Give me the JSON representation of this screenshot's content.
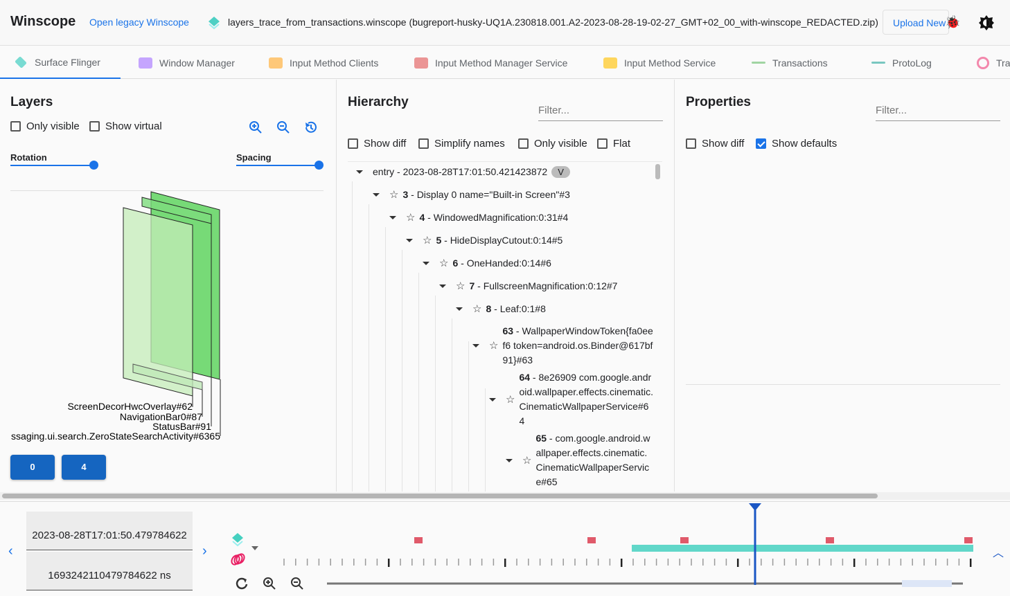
{
  "header": {
    "title": "Winscope",
    "legacy_link": "Open legacy Winscope",
    "trace_file": "layers_trace_from_transactions.winscope (bugreport-husky-UQ1A.230818.001.A2-2023-08-28-19-02-27_GMT+02_00_with-winscope_REDACTED.zip)",
    "upload_label": "Upload New",
    "bug_icon": "bug-icon",
    "theme_icon": "brightness-icon"
  },
  "tabs": [
    {
      "label": "Surface Flinger",
      "icon": "layers-icon",
      "color": "#4dd0c4",
      "active": true
    },
    {
      "label": "Window Manager",
      "icon": "window-icon",
      "color": "#b388ff"
    },
    {
      "label": "Input Method Clients",
      "icon": "keyboard-icon",
      "color": "#ffb74d"
    },
    {
      "label": "Input Method Manager Service",
      "icon": "keyboard-icon",
      "color": "#e57373"
    },
    {
      "label": "Input Method Service",
      "icon": "keyboard-icon",
      "color": "#ffca28"
    },
    {
      "label": "Transactions",
      "icon": "chart-line-icon",
      "color": "#81c784"
    },
    {
      "label": "ProtoLog",
      "icon": "list-icon",
      "color": "#4db6ac"
    },
    {
      "label": "Tra",
      "icon": "rings-icon",
      "color": "#f06292"
    }
  ],
  "layers": {
    "title": "Layers",
    "only_visible": "Only visible",
    "show_virtual": "Show virtual",
    "rotation": "Rotation",
    "spacing": "Spacing",
    "rotation_value": 1.0,
    "spacing_value": 1.0,
    "labels": [
      "ScreenDecorHwcOverlay#62",
      "NavigationBar0#87",
      "StatusBar#91",
      "ssaging.ui.search.ZeroStateSearchActivity#6365"
    ],
    "display_buttons": [
      "0",
      "4"
    ]
  },
  "hierarchy": {
    "title": "Hierarchy",
    "filter_placeholder": "Filter...",
    "show_diff": "Show diff",
    "simplify_names": "Simplify names",
    "only_visible": "Only visible",
    "flat": "Flat",
    "tree": [
      {
        "level": 0,
        "id": "entry",
        "text": " - 2023-08-28T17:01:50.421423872",
        "badge": "V"
      },
      {
        "level": 1,
        "id": "3",
        "text": " - Display 0 name=\"Built-in Screen\"#3"
      },
      {
        "level": 2,
        "id": "4",
        "text": " - WindowedMagnification:0:31#4"
      },
      {
        "level": 3,
        "id": "5",
        "text": " - HideDisplayCutout:0:14#5"
      },
      {
        "level": 4,
        "id": "6",
        "text": " - OneHanded:0:14#6"
      },
      {
        "level": 5,
        "id": "7",
        "text": " - FullscreenMagnification:0:12#7"
      },
      {
        "level": 6,
        "id": "8",
        "text": " - Leaf:0:1#8"
      },
      {
        "level": 7,
        "id": "63",
        "text": " - WallpaperWindowToken{fa0eef6 token=android.os.Binder@617bf91}#63"
      },
      {
        "level": 8,
        "id": "64",
        "text": " - 8e26909 com.google.android.wallpaper.effects.cinematic.CinematicWallpaperService#64"
      },
      {
        "level": 9,
        "id": "65",
        "text": " - com.google.android.wallpaper.effects.cinematic.CinematicWallpaperService#65"
      }
    ]
  },
  "properties": {
    "title": "Properties",
    "filter_placeholder": "Filter...",
    "show_diff": "Show diff",
    "show_defaults": "Show defaults",
    "show_defaults_checked": true
  },
  "timeline": {
    "timestamp": "2023-08-28T17:01:50.479784622",
    "timestamp_ns": "1693242110479784622 ns",
    "colors": {
      "cursor": "#1a56c4",
      "transactions": "#e05a6a",
      "layers": "#45d0c0"
    }
  }
}
